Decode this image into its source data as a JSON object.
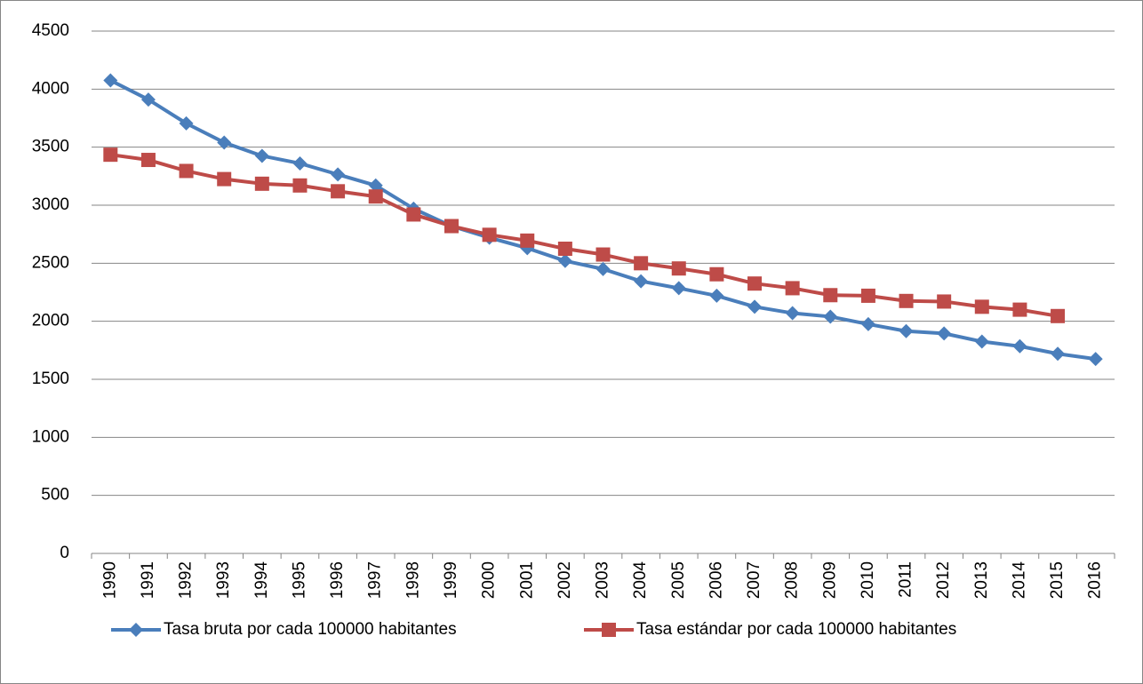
{
  "chart_data": {
    "type": "line",
    "categories": [
      "1990",
      "1991",
      "1992",
      "1993",
      "1994",
      "1995",
      "1996",
      "1997",
      "1998",
      "1999",
      "2000",
      "2001",
      "2002",
      "2003",
      "2004",
      "2005",
      "2006",
      "2007",
      "2008",
      "2009",
      "2010",
      "2011",
      "2012",
      "2013",
      "2014",
      "2015",
      "2016"
    ],
    "series": [
      {
        "name": "Tasa bruta por cada 100000 habitantes",
        "color": "#4a7ebb",
        "marker": "diamond",
        "values": [
          4075,
          3910,
          3705,
          3540,
          3425,
          3360,
          3265,
          3170,
          2970,
          2820,
          2720,
          2630,
          2520,
          2450,
          2345,
          2285,
          2220,
          2125,
          2070,
          2040,
          1975,
          1915,
          1895,
          1825,
          1785,
          1720,
          1675
        ]
      },
      {
        "name": "Tasa estándar por cada 100000 habitantes",
        "color": "#be4b48",
        "marker": "square",
        "values": [
          3435,
          3390,
          3295,
          3225,
          3185,
          3170,
          3120,
          3075,
          2920,
          2820,
          2745,
          2695,
          2625,
          2575,
          2500,
          2455,
          2405,
          2325,
          2285,
          2225,
          2220,
          2175,
          2170,
          2125,
          2100,
          2045,
          null
        ]
      }
    ],
    "ylim": [
      0,
      4500
    ],
    "yticks": [
      0,
      500,
      1000,
      1500,
      2000,
      2500,
      3000,
      3500,
      4000,
      4500
    ],
    "grid": true,
    "legend": "bottom"
  }
}
